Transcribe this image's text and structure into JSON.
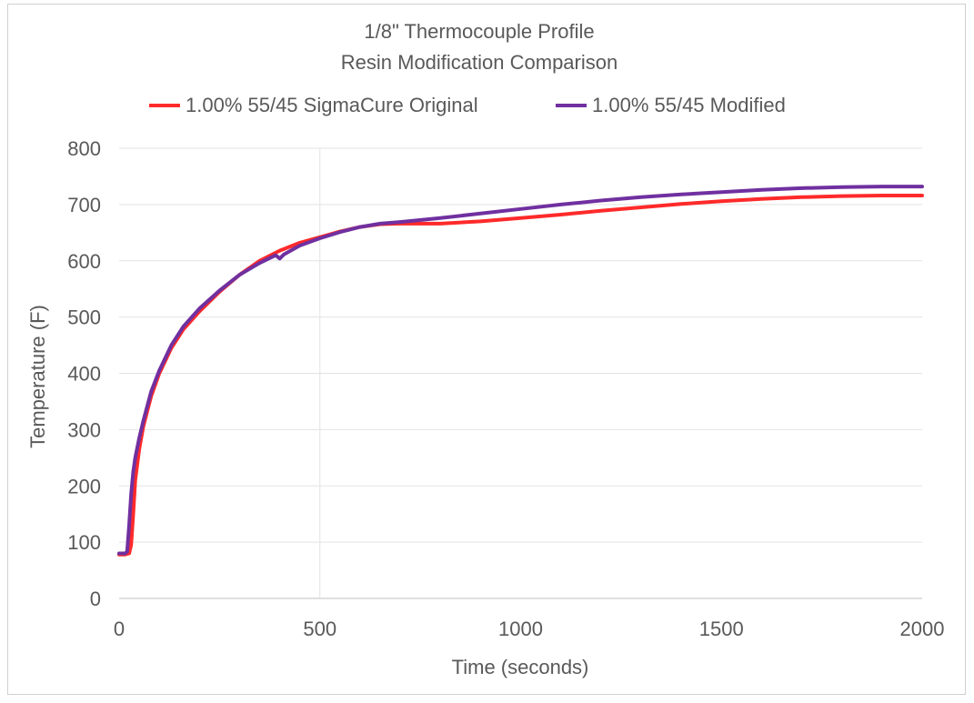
{
  "chart_data": {
    "type": "line",
    "title": "1/8\" Thermocouple Profile",
    "subtitle": "Resin Modification Comparison",
    "xlabel": "Time (seconds)",
    "ylabel": "Temperature (F)",
    "xlim": [
      0,
      2000
    ],
    "ylim": [
      0,
      800
    ],
    "x_ticks": [
      0,
      500,
      1000,
      1500,
      2000
    ],
    "y_ticks": [
      0,
      100,
      200,
      300,
      400,
      500,
      600,
      700,
      800
    ],
    "grid": true,
    "legend_position": "top",
    "series": [
      {
        "name": "1.00% 55/45 SigmaCure Original",
        "color": "#ff2a2a",
        "points": [
          [
            0,
            78
          ],
          [
            15,
            78
          ],
          [
            25,
            80
          ],
          [
            30,
            95
          ],
          [
            35,
            150
          ],
          [
            40,
            210
          ],
          [
            50,
            265
          ],
          [
            60,
            305
          ],
          [
            80,
            360
          ],
          [
            100,
            400
          ],
          [
            130,
            445
          ],
          [
            160,
            478
          ],
          [
            200,
            510
          ],
          [
            250,
            545
          ],
          [
            300,
            575
          ],
          [
            350,
            600
          ],
          [
            400,
            618
          ],
          [
            450,
            632
          ],
          [
            500,
            642
          ],
          [
            550,
            652
          ],
          [
            600,
            660
          ],
          [
            650,
            665
          ],
          [
            700,
            666
          ],
          [
            800,
            666
          ],
          [
            900,
            670
          ],
          [
            1000,
            676
          ],
          [
            1100,
            682
          ],
          [
            1200,
            689
          ],
          [
            1300,
            695
          ],
          [
            1400,
            701
          ],
          [
            1500,
            706
          ],
          [
            1600,
            710
          ],
          [
            1700,
            713
          ],
          [
            1800,
            715
          ],
          [
            1900,
            716
          ],
          [
            2000,
            716
          ]
        ]
      },
      {
        "name": "1.00% 55/45 Modified",
        "color": "#7030a0",
        "points": [
          [
            0,
            80
          ],
          [
            15,
            80
          ],
          [
            20,
            83
          ],
          [
            25,
            130
          ],
          [
            30,
            185
          ],
          [
            35,
            225
          ],
          [
            40,
            250
          ],
          [
            50,
            285
          ],
          [
            60,
            315
          ],
          [
            80,
            368
          ],
          [
            100,
            405
          ],
          [
            130,
            450
          ],
          [
            160,
            483
          ],
          [
            200,
            515
          ],
          [
            250,
            547
          ],
          [
            300,
            575
          ],
          [
            350,
            596
          ],
          [
            390,
            610
          ],
          [
            400,
            604
          ],
          [
            410,
            611
          ],
          [
            450,
            627
          ],
          [
            500,
            640
          ],
          [
            550,
            651
          ],
          [
            600,
            660
          ],
          [
            650,
            666
          ],
          [
            700,
            669
          ],
          [
            800,
            676
          ],
          [
            900,
            684
          ],
          [
            1000,
            692
          ],
          [
            1100,
            700
          ],
          [
            1200,
            707
          ],
          [
            1300,
            713
          ],
          [
            1400,
            718
          ],
          [
            1500,
            722
          ],
          [
            1600,
            726
          ],
          [
            1700,
            729
          ],
          [
            1800,
            731
          ],
          [
            1900,
            732
          ],
          [
            2000,
            732
          ]
        ]
      }
    ]
  }
}
